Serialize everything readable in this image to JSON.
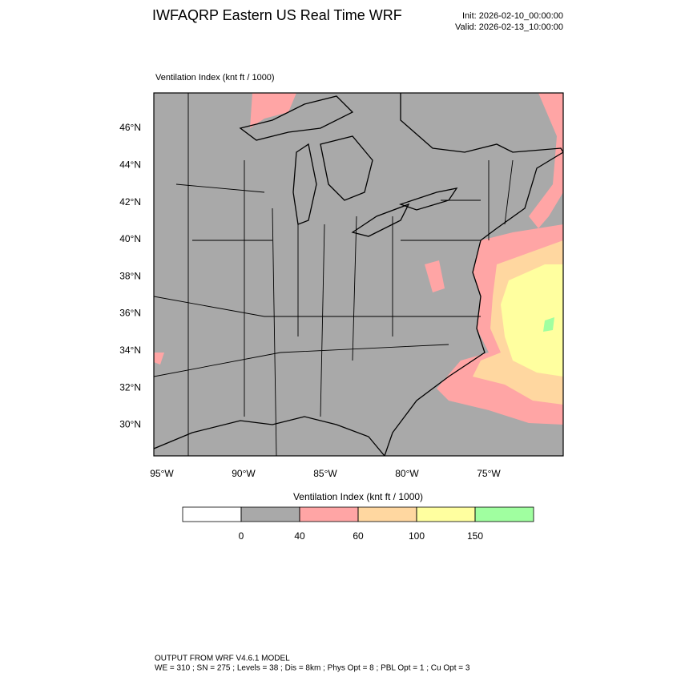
{
  "header": {
    "title": "IWFAQRP Eastern US Real Time WRF",
    "init": "Init: 2026-02-10_00:00:00",
    "valid": "Valid: 2026-02-13_10:00:00"
  },
  "map": {
    "title": "Ventilation Index   (knt ft / 1000)",
    "lat_labels": [
      "46°N",
      "44°N",
      "42°N",
      "40°N",
      "38°N",
      "36°N",
      "34°N",
      "32°N",
      "30°N"
    ],
    "lon_labels": [
      "95°W",
      "90°W",
      "85°W",
      "80°W",
      "75°W"
    ]
  },
  "colorbar": {
    "title": "Ventilation Index  (knt ft / 1000)",
    "colors": [
      "#ffffff",
      "#a9a9a9",
      "#ffa5a5",
      "#ffd7a0",
      "#ffff9f",
      "#a0ffa0"
    ],
    "ticks": [
      0,
      40,
      60,
      100,
      150
    ]
  },
  "footer": {
    "line1": "OUTPUT FROM WRF V4.6.1 MODEL",
    "line2": "WE = 310 ; SN = 275 ; Levels = 38 ; Dis = 8km ; Phys Opt = 8 ; PBL Opt = 1 ; Cu Opt = 3"
  }
}
